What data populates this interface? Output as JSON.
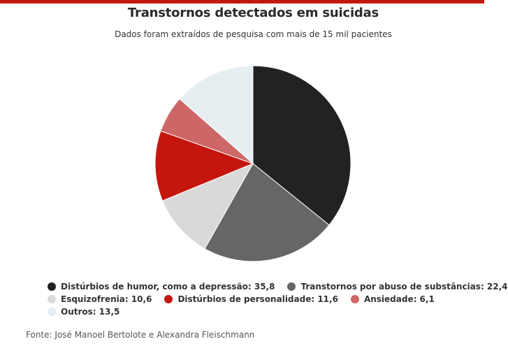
{
  "chart_data": {
    "type": "pie",
    "title": "Transtornos detectados em suicidas",
    "subtitle": "Dados foram extraídos de pesquisa com mais de 15 mil pacientes",
    "source": "Fonte: José Manoel Bertolote e Alexandra Fleischmann",
    "slices": [
      {
        "label": "Distúrbios de humor, como a depressão",
        "value": 35.8,
        "value_text": "35,8",
        "color": "#222222"
      },
      {
        "label": "Transtornos por abuso de substâncias",
        "value": 22.4,
        "value_text": "22,4",
        "color": "#666666"
      },
      {
        "label": "Esquizofrenia",
        "value": 10.6,
        "value_text": "10,6",
        "color": "#d9d9d9"
      },
      {
        "label": "Distúrbios de personalidade",
        "value": 11.6,
        "value_text": "11,6",
        "color": "#c4160e"
      },
      {
        "label": "Ansiedade",
        "value": 6.1,
        "value_text": "6,1",
        "color": "#cd6666"
      },
      {
        "label": "Outros",
        "value": 13.5,
        "value_text": "13,5",
        "color": "#e7eef1"
      }
    ],
    "legend_rows": [
      [
        0,
        1
      ],
      [
        2,
        3,
        4
      ],
      [
        5
      ]
    ],
    "legend_position": "bottom"
  },
  "colors": {
    "accent_bar": "#c4160e"
  }
}
